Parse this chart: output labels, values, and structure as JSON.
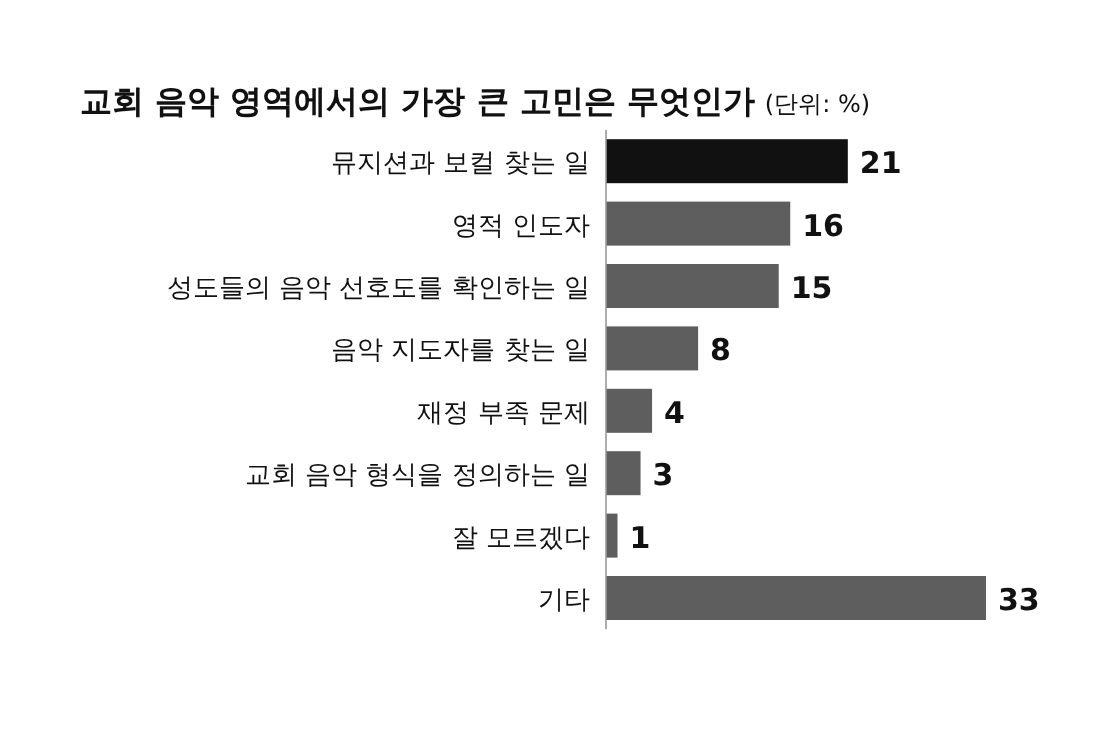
{
  "chart_data": {
    "type": "bar",
    "orientation": "horizontal",
    "title": "교회 음악 영역에서의 가장 큰 고민은 무엇인가",
    "subtitle": "(단위: %)",
    "categories": [
      "뮤지션과 보컬 찾는 일",
      "영적 인도자",
      "성도들의 음악 선호도를 확인하는 일",
      "음악 지도자를 찾는 일",
      "재정 부족 문제",
      "교회 음악 형식을 정의하는 일",
      "잘 모르겠다",
      "기타"
    ],
    "values": [
      21,
      16,
      15,
      8,
      4,
      3,
      1,
      33
    ],
    "colors": [
      "#111111",
      "#5e5e5e",
      "#5e5e5e",
      "#5e5e5e",
      "#5e5e5e",
      "#5e5e5e",
      "#5e5e5e",
      "#5e5e5e"
    ],
    "data_labels": true
  }
}
